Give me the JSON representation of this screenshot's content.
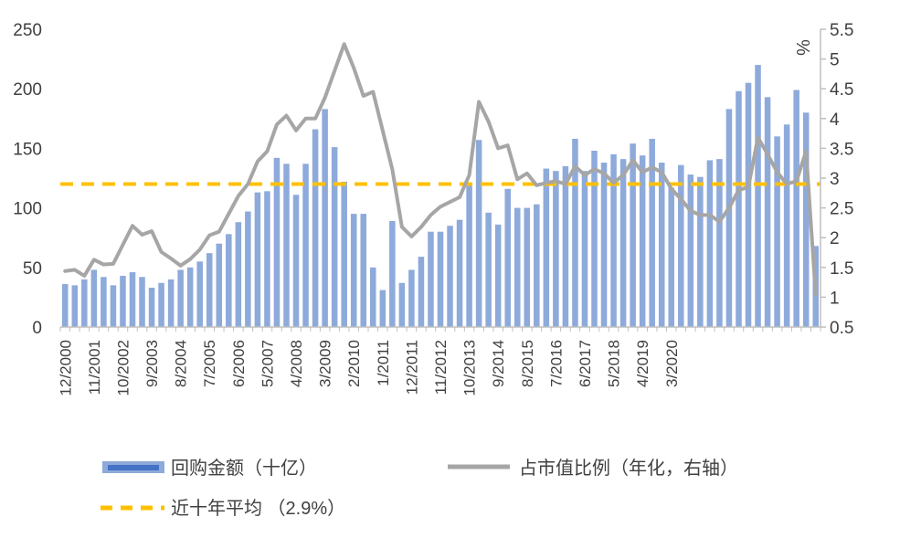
{
  "chart_data": {
    "type": "bar",
    "title": "",
    "xlabel": "",
    "ylabel": "",
    "y2label": "%",
    "ylim": [
      0,
      250
    ],
    "y2lim": [
      0.5,
      5.5
    ],
    "yticks": [
      "0",
      "50",
      "100",
      "150",
      "200",
      "250"
    ],
    "y2ticks": [
      "0.5",
      "1",
      "1.5",
      "2",
      "2.5",
      "3",
      "3.5",
      "4",
      "4.5",
      "5",
      "5.5"
    ],
    "x_tick_labels": [
      "12/2000",
      "11/2001",
      "10/2002",
      "9/2003",
      "8/2004",
      "7/2005",
      "6/2006",
      "5/2007",
      "4/2008",
      "3/2009",
      "2/2010",
      "1/2011",
      "12/2011",
      "11/2012",
      "10/2013",
      "9/2014",
      "8/2015",
      "7/2016",
      "6/2017",
      "5/2018",
      "4/2019",
      "3/2020"
    ],
    "legend_position": "bottom",
    "grid": false,
    "colors": {
      "bar": "#8eaadb",
      "line": "#a6a6a6",
      "avg": "#ffc000"
    },
    "series": [
      {
        "name": "回购金额（十亿）",
        "type": "bar",
        "axis": "left",
        "values": [
          36,
          35,
          40,
          48,
          42,
          35,
          43,
          46,
          42,
          33,
          37,
          40,
          48,
          50,
          55,
          62,
          70,
          78,
          88,
          97,
          113,
          114,
          142,
          137,
          111,
          137,
          166,
          183,
          151,
          122,
          95,
          95,
          50,
          31,
          89,
          37,
          48,
          59,
          80,
          80,
          85,
          90,
          121,
          157,
          96,
          86,
          116,
          100,
          100,
          103,
          133,
          131,
          135,
          158,
          131,
          148,
          138,
          145,
          141,
          154,
          144,
          158,
          138,
          117,
          136,
          128,
          126,
          140,
          141,
          183,
          198,
          205,
          220,
          193,
          160,
          170,
          199,
          180,
          68
        ]
      },
      {
        "name": "占市值比例（年化，右轴）",
        "type": "line",
        "axis": "right",
        "values": [
          1.44,
          1.46,
          1.36,
          1.63,
          1.55,
          1.56,
          1.88,
          2.2,
          2.05,
          2.11,
          1.76,
          1.65,
          1.53,
          1.64,
          1.8,
          2.04,
          2.1,
          2.4,
          2.7,
          2.9,
          3.28,
          3.45,
          3.9,
          4.05,
          3.8,
          4.0,
          4.0,
          4.35,
          4.8,
          5.25,
          4.85,
          4.38,
          4.45,
          3.8,
          3.15,
          2.18,
          2.02,
          2.18,
          2.38,
          2.52,
          2.6,
          2.68,
          3.05,
          4.28,
          3.95,
          3.5,
          3.55,
          2.98,
          3.08,
          2.88,
          2.92,
          2.95,
          2.9,
          3.2,
          3.05,
          3.15,
          3.08,
          2.92,
          3.05,
          3.3,
          3.1,
          3.18,
          3.1,
          2.82,
          2.65,
          2.45,
          2.38,
          2.38,
          2.27,
          2.5,
          2.8,
          2.85,
          3.68,
          3.4,
          3.1,
          2.9,
          2.95,
          3.45,
          1.05
        ]
      },
      {
        "name": "近十年平均 （2.9%）",
        "type": "hline",
        "axis": "right",
        "value": 2.9
      }
    ]
  }
}
